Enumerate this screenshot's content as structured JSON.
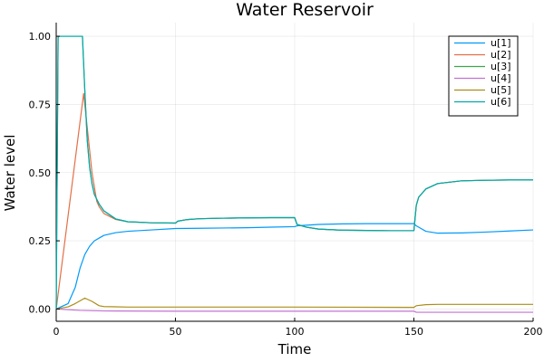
{
  "chart_data": {
    "type": "line",
    "title": "Water Reservoir",
    "xlabel": "Time",
    "ylabel": "Water level",
    "xlim": [
      0,
      200
    ],
    "ylim": [
      -0.045,
      1.05
    ],
    "xticks": [
      0,
      50,
      100,
      150,
      200
    ],
    "xtick_labels": [
      "0",
      "50",
      "100",
      "150",
      "200"
    ],
    "yticks": [
      0.0,
      0.25,
      0.5,
      0.75,
      1.0
    ],
    "ytick_labels": [
      "0.00",
      "0.25",
      "0.50",
      "0.75",
      "1.00"
    ],
    "grid": true,
    "legend_position": "top-right",
    "series": [
      {
        "name": "u[1]",
        "color": "#009AFA",
        "x": [
          0,
          5,
          8,
          10,
          12,
          14,
          16,
          18,
          20,
          25,
          30,
          40,
          50,
          60,
          70,
          80,
          90,
          100,
          101,
          110,
          120,
          130,
          140,
          150,
          151,
          155,
          160,
          170,
          180,
          190,
          200
        ],
        "y": [
          0.0,
          0.02,
          0.08,
          0.15,
          0.2,
          0.23,
          0.25,
          0.26,
          0.27,
          0.28,
          0.285,
          0.29,
          0.295,
          0.296,
          0.297,
          0.298,
          0.3,
          0.302,
          0.305,
          0.31,
          0.312,
          0.313,
          0.313,
          0.313,
          0.305,
          0.285,
          0.278,
          0.279,
          0.282,
          0.286,
          0.29
        ]
      },
      {
        "name": "u[2]",
        "color": "#E36F47",
        "x": [
          0,
          11.5,
          15,
          17,
          18,
          20,
          25,
          30,
          40,
          50,
          51,
          55,
          60,
          70,
          80,
          90,
          100,
          101,
          105,
          110,
          120,
          130,
          140,
          150,
          151,
          152,
          155,
          160,
          170,
          180,
          190,
          200
        ],
        "y": [
          0.0,
          0.79,
          0.5,
          0.395,
          0.375,
          0.35,
          0.328,
          0.32,
          0.316,
          0.315,
          0.322,
          0.328,
          0.331,
          0.333,
          0.334,
          0.335,
          0.335,
          0.31,
          0.3,
          0.293,
          0.289,
          0.288,
          0.287,
          0.287,
          0.38,
          0.41,
          0.44,
          0.46,
          0.47,
          0.472,
          0.473,
          0.473
        ]
      },
      {
        "name": "u[3]",
        "color": "#3EA44E",
        "x": [
          0,
          0.8,
          11,
          12,
          13,
          14,
          15,
          16,
          18,
          20,
          25,
          30,
          40,
          50,
          51,
          55,
          60,
          70,
          80,
          90,
          100,
          101,
          105,
          110,
          120,
          130,
          140,
          150,
          151,
          152,
          155,
          160,
          170,
          180,
          190,
          200
        ],
        "y": [
          0.0,
          1.0,
          1.0,
          0.8,
          0.62,
          0.52,
          0.46,
          0.42,
          0.385,
          0.36,
          0.33,
          0.32,
          0.316,
          0.315,
          0.322,
          0.328,
          0.331,
          0.333,
          0.334,
          0.335,
          0.335,
          0.31,
          0.3,
          0.293,
          0.289,
          0.288,
          0.287,
          0.287,
          0.38,
          0.41,
          0.44,
          0.46,
          0.47,
          0.472,
          0.473,
          0.473
        ]
      },
      {
        "name": "u[4]",
        "color": "#C271D2",
        "x": [
          0,
          10,
          20,
          50,
          100,
          150,
          151,
          200
        ],
        "y": [
          0.0,
          -0.005,
          -0.007,
          -0.008,
          -0.008,
          -0.008,
          -0.012,
          -0.012
        ]
      },
      {
        "name": "u[5]",
        "color": "#AC8D18",
        "x": [
          0,
          5,
          8,
          12,
          15,
          18,
          20,
          30,
          50,
          100,
          150,
          151,
          155,
          160,
          200
        ],
        "y": [
          0.0,
          0.008,
          0.02,
          0.04,
          0.028,
          0.012,
          0.009,
          0.007,
          0.007,
          0.007,
          0.006,
          0.012,
          0.016,
          0.017,
          0.017
        ]
      },
      {
        "name": "u[6]",
        "color": "#00A9AD",
        "x": [
          0,
          0.8,
          11,
          12,
          13,
          14,
          15,
          16,
          18,
          20,
          25,
          30,
          40,
          50,
          51,
          55,
          60,
          70,
          80,
          90,
          100,
          101,
          105,
          110,
          120,
          130,
          140,
          150,
          151,
          152,
          155,
          160,
          170,
          180,
          190,
          200
        ],
        "y": [
          0.0,
          1.0,
          1.0,
          0.8,
          0.62,
          0.52,
          0.46,
          0.42,
          0.385,
          0.36,
          0.33,
          0.32,
          0.316,
          0.315,
          0.322,
          0.328,
          0.331,
          0.333,
          0.334,
          0.335,
          0.335,
          0.31,
          0.3,
          0.293,
          0.289,
          0.288,
          0.287,
          0.287,
          0.38,
          0.41,
          0.44,
          0.46,
          0.47,
          0.472,
          0.473,
          0.473
        ]
      }
    ]
  }
}
